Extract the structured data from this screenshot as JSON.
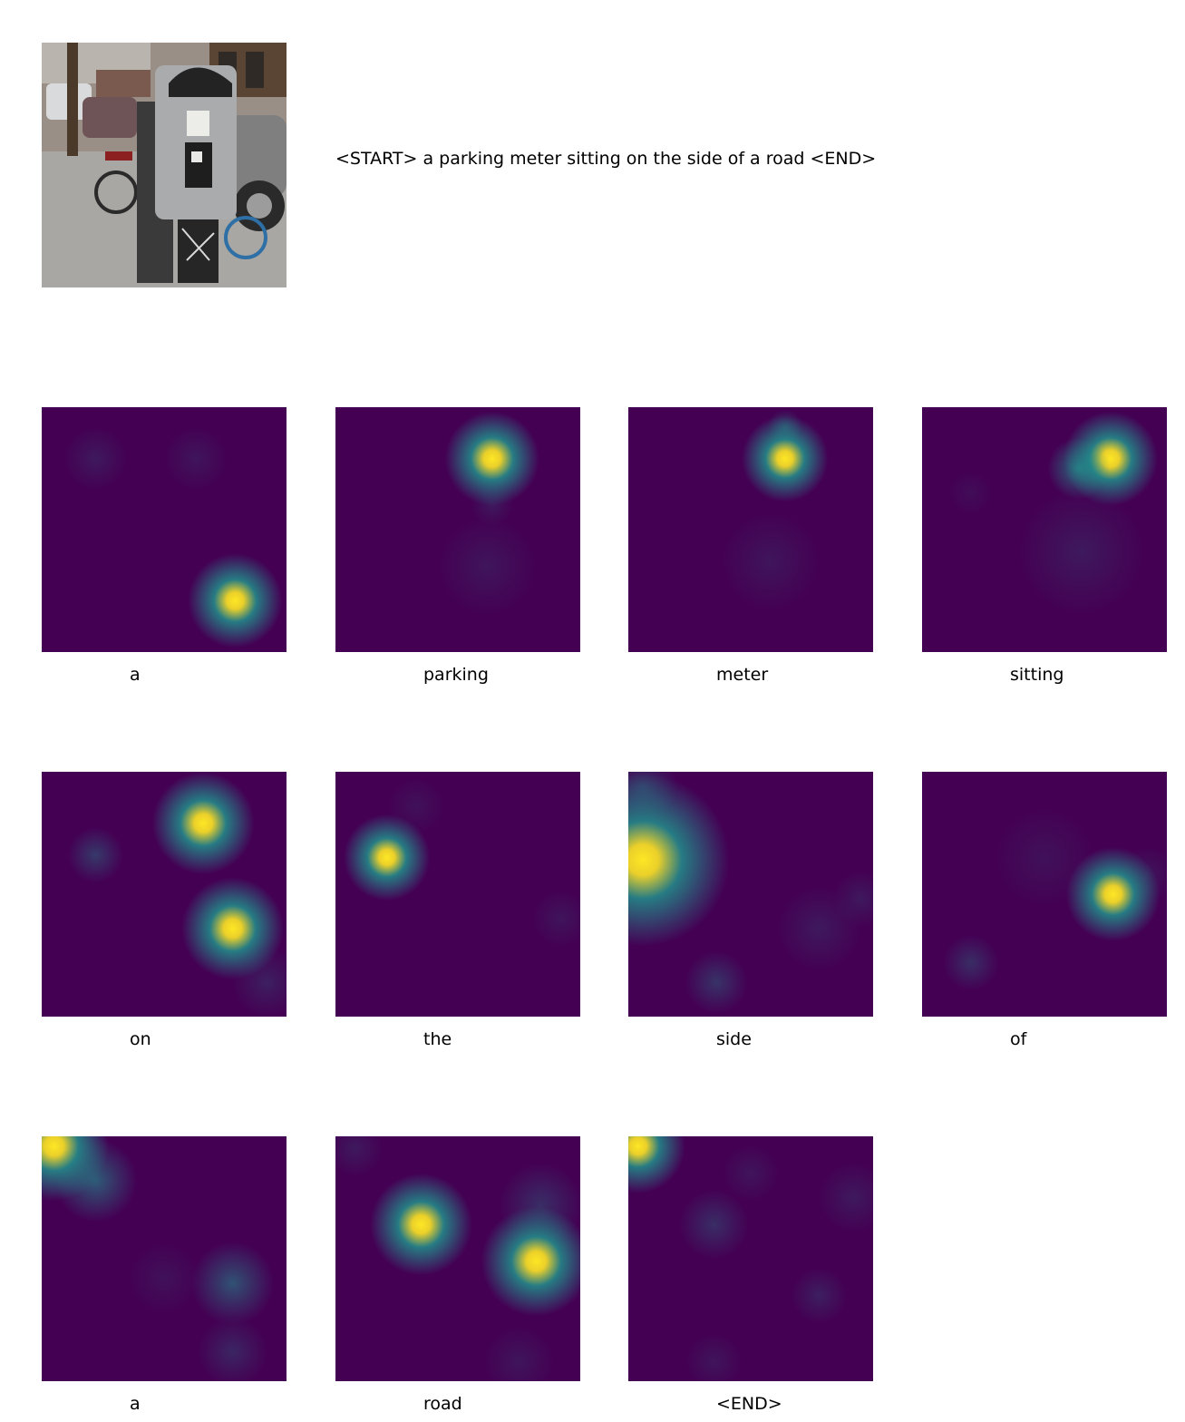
{
  "caption": "<START> a parking meter sitting on the side of a road <END>",
  "colormap": {
    "low": "#440154",
    "mid": "#21918c",
    "high": "#fde725"
  },
  "words": [
    {
      "label": "a",
      "spots": [
        [
          0.79,
          0.79,
          0.12,
          1.0
        ],
        [
          0.22,
          0.21,
          0.09,
          0.12
        ],
        [
          0.63,
          0.21,
          0.09,
          0.1
        ]
      ]
    },
    {
      "label": "parking",
      "spots": [
        [
          0.64,
          0.21,
          0.12,
          1.0
        ],
        [
          0.62,
          0.65,
          0.14,
          0.1
        ],
        [
          0.64,
          0.4,
          0.06,
          0.12
        ]
      ]
    },
    {
      "label": "meter",
      "spots": [
        [
          0.64,
          0.21,
          0.11,
          1.0
        ],
        [
          0.64,
          0.08,
          0.05,
          0.3
        ],
        [
          0.58,
          0.63,
          0.14,
          0.1
        ]
      ]
    },
    {
      "label": "sitting",
      "spots": [
        [
          0.77,
          0.21,
          0.12,
          0.95
        ],
        [
          0.64,
          0.25,
          0.09,
          0.55
        ],
        [
          0.65,
          0.59,
          0.18,
          0.12
        ],
        [
          0.2,
          0.35,
          0.06,
          0.06
        ]
      ]
    },
    {
      "label": "on",
      "spots": [
        [
          0.66,
          0.21,
          0.13,
          0.95
        ],
        [
          0.78,
          0.64,
          0.13,
          0.85
        ],
        [
          0.22,
          0.34,
          0.08,
          0.28
        ],
        [
          0.92,
          0.86,
          0.1,
          0.15
        ]
      ]
    },
    {
      "label": "the",
      "spots": [
        [
          0.21,
          0.35,
          0.11,
          1.0
        ],
        [
          0.92,
          0.6,
          0.08,
          0.1
        ],
        [
          0.33,
          0.14,
          0.08,
          0.08
        ]
      ]
    },
    {
      "label": "side",
      "spots": [
        [
          0.06,
          0.36,
          0.22,
          1.0
        ],
        [
          0.06,
          0.06,
          0.1,
          0.25
        ],
        [
          0.36,
          0.86,
          0.09,
          0.25
        ],
        [
          0.78,
          0.64,
          0.12,
          0.12
        ],
        [
          0.95,
          0.52,
          0.08,
          0.12
        ]
      ]
    },
    {
      "label": "of",
      "spots": [
        [
          0.78,
          0.5,
          0.12,
          1.0
        ],
        [
          0.2,
          0.78,
          0.08,
          0.22
        ],
        [
          0.5,
          0.35,
          0.14,
          0.08
        ],
        [
          0.92,
          0.42,
          0.08,
          0.1
        ]
      ]
    },
    {
      "label": "a",
      "spots": [
        [
          0.05,
          0.04,
          0.14,
          1.0
        ],
        [
          0.22,
          0.18,
          0.12,
          0.45
        ],
        [
          0.78,
          0.6,
          0.12,
          0.4
        ],
        [
          0.78,
          0.88,
          0.1,
          0.18
        ],
        [
          0.5,
          0.58,
          0.1,
          0.08
        ]
      ]
    },
    {
      "label": "road",
      "spots": [
        [
          0.35,
          0.36,
          0.13,
          0.95
        ],
        [
          0.82,
          0.51,
          0.14,
          0.7
        ],
        [
          0.84,
          0.28,
          0.12,
          0.22
        ],
        [
          0.08,
          0.05,
          0.08,
          0.12
        ],
        [
          0.75,
          0.92,
          0.1,
          0.1
        ]
      ]
    },
    {
      "label": "<END>",
      "spots": [
        [
          0.04,
          0.04,
          0.12,
          1.0
        ],
        [
          0.35,
          0.36,
          0.1,
          0.22
        ],
        [
          0.78,
          0.65,
          0.08,
          0.15
        ],
        [
          0.5,
          0.15,
          0.08,
          0.1
        ],
        [
          0.92,
          0.25,
          0.1,
          0.12
        ],
        [
          0.35,
          0.92,
          0.08,
          0.1
        ]
      ]
    }
  ]
}
